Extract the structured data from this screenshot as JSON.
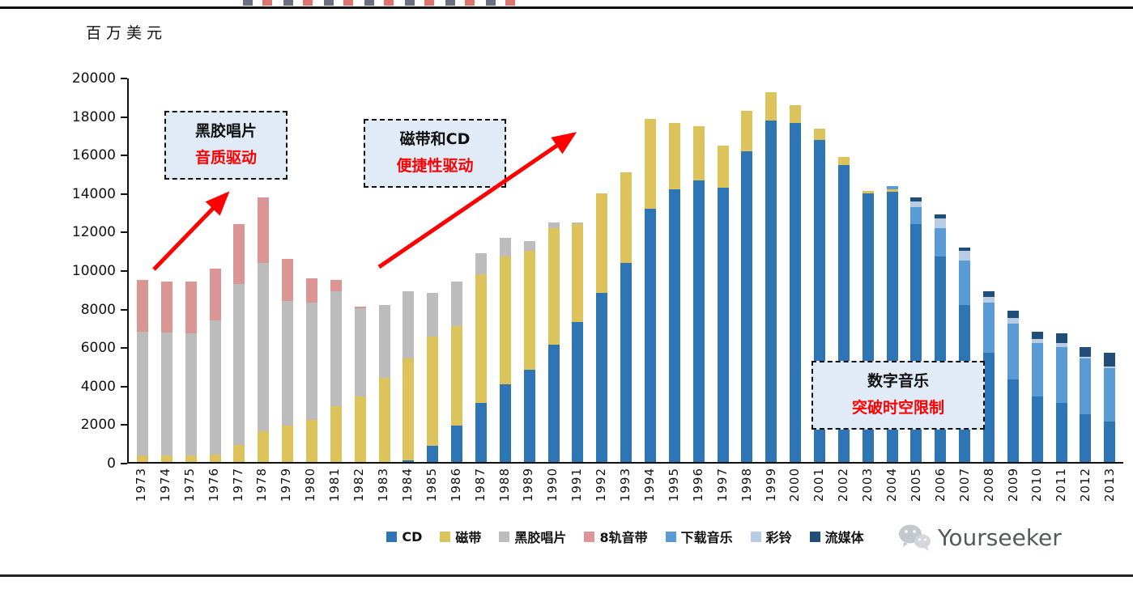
{
  "page": {
    "y_axis_title": "百万美元",
    "watermark_text": "Yourseeker"
  },
  "annotations": [
    {
      "line1": "黑胶唱片",
      "line2": "音质驱动"
    },
    {
      "line1": "磁带和CD",
      "line2": "便捷性驱动"
    },
    {
      "line1": "数字音乐",
      "line2": "突破时空限制"
    }
  ],
  "chart_data": {
    "type": "bar",
    "stacked": true,
    "title": "",
    "ylabel": "百万美元",
    "xlabel": "",
    "ylim": [
      0,
      20000
    ],
    "ytick_step": 2000,
    "grid": false,
    "legend_position": "bottom",
    "x": [
      1973,
      1974,
      1975,
      1976,
      1977,
      1978,
      1979,
      1980,
      1981,
      1982,
      1983,
      1984,
      1985,
      1986,
      1987,
      1988,
      1989,
      1990,
      1991,
      1992,
      1993,
      1994,
      1995,
      1996,
      1997,
      1998,
      1999,
      2000,
      2001,
      2002,
      2003,
      2004,
      2005,
      2006,
      2007,
      2008,
      2009,
      2010,
      2011,
      2012,
      2013
    ],
    "series": [
      {
        "name": "CD",
        "color": "#2e75b6",
        "values": [
          0,
          0,
          0,
          0,
          0,
          0,
          0,
          0,
          0,
          0,
          0,
          100,
          850,
          1900,
          3100,
          4050,
          4800,
          6100,
          7300,
          8800,
          10400,
          13200,
          14200,
          14700,
          14300,
          16200,
          17800,
          17700,
          16800,
          15500,
          14000,
          14100,
          12400,
          10700,
          8200,
          5700,
          4300,
          3400,
          3100,
          2500,
          2100
        ]
      },
      {
        "name": "磁带",
        "color": "#dcc35c",
        "values": [
          350,
          350,
          350,
          400,
          900,
          1600,
          1900,
          2200,
          2900,
          3400,
          4400,
          5300,
          5700,
          5200,
          6700,
          6650,
          6200,
          6100,
          5100,
          5200,
          4700,
          4700,
          3500,
          2800,
          2200,
          2100,
          1500,
          900,
          600,
          400,
          150,
          100,
          0,
          0,
          0,
          0,
          0,
          0,
          0,
          0,
          0
        ]
      },
      {
        "name": "黑胶唱片",
        "color": "#bcbcbc",
        "values": [
          6450,
          6400,
          6350,
          7000,
          8400,
          8800,
          6500,
          6100,
          6000,
          4600,
          3800,
          3500,
          2250,
          2300,
          1100,
          1000,
          500,
          300,
          100,
          0,
          0,
          0,
          0,
          0,
          0,
          0,
          0,
          0,
          0,
          0,
          0,
          0,
          0,
          0,
          0,
          0,
          0,
          0,
          0,
          0,
          0
        ]
      },
      {
        "name": "8轨音带",
        "color": "#d99694",
        "values": [
          2700,
          2650,
          2700,
          2700,
          3100,
          3400,
          2200,
          1300,
          600,
          100,
          0,
          0,
          0,
          0,
          0,
          0,
          0,
          0,
          0,
          0,
          0,
          0,
          0,
          0,
          0,
          0,
          0,
          0,
          0,
          0,
          0,
          0,
          0,
          0,
          0,
          0,
          0,
          0,
          0,
          0,
          0
        ]
      },
      {
        "name": "下载音乐",
        "color": "#5b9bd5",
        "values": [
          0,
          0,
          0,
          0,
          0,
          0,
          0,
          0,
          0,
          0,
          0,
          0,
          0,
          0,
          0,
          0,
          0,
          0,
          0,
          0,
          0,
          0,
          0,
          0,
          0,
          0,
          0,
          0,
          0,
          0,
          0,
          200,
          900,
          1500,
          2300,
          2600,
          2900,
          2800,
          2900,
          2900,
          2800
        ]
      },
      {
        "name": "彩铃",
        "color": "#b8cce4",
        "values": [
          0,
          0,
          0,
          0,
          0,
          0,
          0,
          0,
          0,
          0,
          0,
          0,
          0,
          0,
          0,
          0,
          0,
          0,
          0,
          0,
          0,
          0,
          0,
          0,
          0,
          0,
          0,
          0,
          0,
          0,
          0,
          0,
          300,
          500,
          500,
          300,
          300,
          200,
          200,
          100,
          100
        ]
      },
      {
        "name": "流媒体",
        "color": "#1f4e79",
        "values": [
          0,
          0,
          0,
          0,
          0,
          0,
          0,
          0,
          0,
          0,
          0,
          0,
          0,
          0,
          0,
          0,
          0,
          0,
          0,
          0,
          0,
          0,
          0,
          0,
          0,
          0,
          0,
          0,
          0,
          0,
          0,
          0,
          200,
          200,
          200,
          300,
          400,
          400,
          500,
          500,
          700
        ]
      }
    ]
  }
}
